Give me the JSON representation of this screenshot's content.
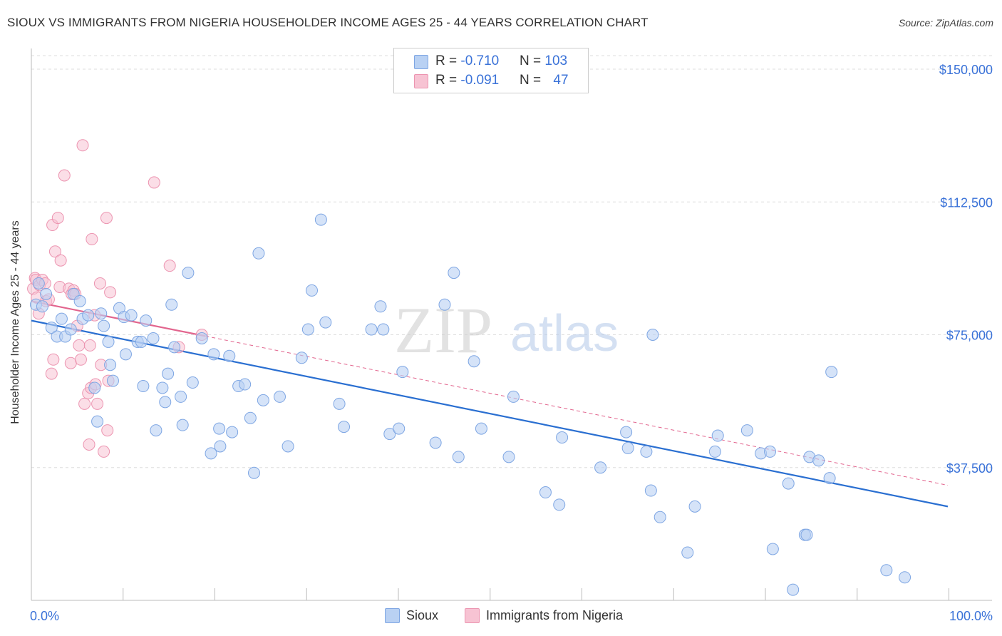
{
  "title": "SIOUX VS IMMIGRANTS FROM NIGERIA HOUSEHOLDER INCOME AGES 25 - 44 YEARS CORRELATION CHART",
  "source": "Source: ZipAtlas.com",
  "legend_top": {
    "rows": [
      {
        "r_label": "R = ",
        "r_value": "-0.710",
        "n_label": "N = ",
        "n_value": "103"
      },
      {
        "r_label": "R = ",
        "r_value": "-0.091",
        "n_label": "N = ",
        "n_value": "47"
      }
    ]
  },
  "watermark": {
    "part1": "ZIP",
    "part2": "atlas"
  },
  "colors": {
    "sioux_fill": "#b9d1f3",
    "sioux_stroke": "#7ea6e3",
    "sioux_line": "#2a6fd1",
    "nigeria_fill": "#f7c3d3",
    "nigeria_stroke": "#ec94b0",
    "nigeria_line": "#e2658e",
    "axis_label": "#3a72d8",
    "grid": "#dddddd"
  },
  "chart_data": {
    "type": "scatter",
    "title": "SIOUX VS IMMIGRANTS FROM NIGERIA HOUSEHOLDER INCOME AGES 25 - 44 YEARS CORRELATION CHART",
    "xlabel": "",
    "ylabel": "Householder Income Ages 25 - 44 years",
    "xlim": [
      0,
      100
    ],
    "ylim": [
      0,
      155000
    ],
    "x_tick_labels": [
      "0.0%",
      "100.0%"
    ],
    "y_ticks": [
      37500,
      75000,
      112500,
      150000
    ],
    "y_tick_labels": [
      "$37,500",
      "$75,000",
      "$112,500",
      "$150,000"
    ],
    "grid": true,
    "legend_position": "bottom-center",
    "series": [
      {
        "name": "Sioux",
        "r": -0.71,
        "n": 103,
        "trend": {
          "x": [
            0,
            100
          ],
          "y": [
            79000,
            26500
          ]
        },
        "points": [
          [
            0.5,
            83500
          ],
          [
            0.8,
            89500
          ],
          [
            1.2,
            83000
          ],
          [
            1.6,
            86500
          ],
          [
            2.2,
            77000
          ],
          [
            2.8,
            74500
          ],
          [
            3.3,
            79500
          ],
          [
            3.7,
            74500
          ],
          [
            4.3,
            76500
          ],
          [
            4.6,
            86500
          ],
          [
            5.3,
            84500
          ],
          [
            5.6,
            79500
          ],
          [
            6.2,
            80500
          ],
          [
            6.9,
            60000
          ],
          [
            7.2,
            50500
          ],
          [
            7.6,
            81000
          ],
          [
            7.9,
            77500
          ],
          [
            8.4,
            73000
          ],
          [
            8.6,
            66500
          ],
          [
            8.9,
            62000
          ],
          [
            9.6,
            82500
          ],
          [
            10.1,
            80000
          ],
          [
            10.3,
            69500
          ],
          [
            10.9,
            80500
          ],
          [
            11.6,
            73000
          ],
          [
            12.0,
            73000
          ],
          [
            12.2,
            60500
          ],
          [
            12.5,
            79000
          ],
          [
            13.3,
            74000
          ],
          [
            13.6,
            48000
          ],
          [
            14.3,
            60000
          ],
          [
            14.6,
            56000
          ],
          [
            14.9,
            64000
          ],
          [
            15.3,
            83500
          ],
          [
            15.6,
            71500
          ],
          [
            16.3,
            57500
          ],
          [
            16.5,
            49500
          ],
          [
            17.1,
            92500
          ],
          [
            17.6,
            61500
          ],
          [
            18.6,
            74000
          ],
          [
            19.6,
            41500
          ],
          [
            19.9,
            69500
          ],
          [
            20.5,
            48500
          ],
          [
            20.6,
            43500
          ],
          [
            21.6,
            69000
          ],
          [
            21.9,
            47500
          ],
          [
            22.6,
            60500
          ],
          [
            23.3,
            61000
          ],
          [
            23.9,
            51500
          ],
          [
            24.3,
            36000
          ],
          [
            24.8,
            98000
          ],
          [
            25.3,
            56500
          ],
          [
            27.1,
            57500
          ],
          [
            28.0,
            43500
          ],
          [
            29.5,
            68500
          ],
          [
            30.2,
            76500
          ],
          [
            30.6,
            87500
          ],
          [
            31.6,
            107500
          ],
          [
            32.1,
            78500
          ],
          [
            33.6,
            55500
          ],
          [
            34.1,
            49000
          ],
          [
            37.1,
            76500
          ],
          [
            38.1,
            83000
          ],
          [
            38.4,
            76500
          ],
          [
            39.1,
            47000
          ],
          [
            40.1,
            48500
          ],
          [
            40.5,
            64500
          ],
          [
            44.1,
            44500
          ],
          [
            45.1,
            83500
          ],
          [
            46.1,
            92500
          ],
          [
            46.6,
            40500
          ],
          [
            48.3,
            67500
          ],
          [
            49.1,
            48500
          ],
          [
            52.1,
            40500
          ],
          [
            52.6,
            57500
          ],
          [
            56.1,
            30500
          ],
          [
            57.6,
            27000
          ],
          [
            57.9,
            46000
          ],
          [
            62.1,
            37500
          ],
          [
            64.9,
            47500
          ],
          [
            65.1,
            43000
          ],
          [
            67.1,
            42000
          ],
          [
            67.6,
            31000
          ],
          [
            67.8,
            75000
          ],
          [
            68.6,
            23500
          ],
          [
            71.6,
            13500
          ],
          [
            72.4,
            26500
          ],
          [
            74.6,
            42000
          ],
          [
            74.9,
            46500
          ],
          [
            78.1,
            48000
          ],
          [
            79.6,
            41500
          ],
          [
            80.6,
            42000
          ],
          [
            80.9,
            14500
          ],
          [
            82.6,
            33000
          ],
          [
            83.1,
            3000
          ],
          [
            84.4,
            18500
          ],
          [
            84.6,
            18500
          ],
          [
            84.9,
            40500
          ],
          [
            85.9,
            39500
          ],
          [
            87.1,
            34500
          ],
          [
            87.3,
            64500
          ],
          [
            93.3,
            8500
          ],
          [
            95.3,
            6500
          ]
        ]
      },
      {
        "name": "Immigrants from Nigeria",
        "r": -0.091,
        "n": 47,
        "trend": {
          "x": [
            0,
            100
          ],
          "y": [
            84500,
            32500
          ]
        },
        "trend_solid_until": 19.0,
        "points": [
          [
            0.2,
            88000
          ],
          [
            0.4,
            91000
          ],
          [
            0.5,
            90500
          ],
          [
            0.6,
            85500
          ],
          [
            0.8,
            81000
          ],
          [
            0.9,
            89000
          ],
          [
            1.2,
            90500
          ],
          [
            1.5,
            89500
          ],
          [
            1.6,
            84500
          ],
          [
            1.9,
            85000
          ],
          [
            2.2,
            64000
          ],
          [
            2.3,
            106000
          ],
          [
            2.4,
            68000
          ],
          [
            2.6,
            98500
          ],
          [
            2.9,
            108000
          ],
          [
            3.1,
            88500
          ],
          [
            3.2,
            96000
          ],
          [
            3.6,
            120000
          ],
          [
            4.1,
            88000
          ],
          [
            4.3,
            67000
          ],
          [
            4.4,
            86500
          ],
          [
            4.6,
            87500
          ],
          [
            4.8,
            86500
          ],
          [
            5.0,
            77500
          ],
          [
            5.2,
            72000
          ],
          [
            5.4,
            68000
          ],
          [
            5.6,
            128500
          ],
          [
            5.8,
            55500
          ],
          [
            6.2,
            58500
          ],
          [
            6.3,
            44000
          ],
          [
            6.4,
            72000
          ],
          [
            6.5,
            60000
          ],
          [
            6.6,
            102000
          ],
          [
            6.9,
            80500
          ],
          [
            7.0,
            61000
          ],
          [
            7.2,
            55500
          ],
          [
            7.5,
            89500
          ],
          [
            7.6,
            66500
          ],
          [
            7.9,
            42000
          ],
          [
            8.2,
            108000
          ],
          [
            8.3,
            48000
          ],
          [
            8.4,
            62000
          ],
          [
            8.6,
            87000
          ],
          [
            13.4,
            118000
          ],
          [
            15.1,
            94500
          ],
          [
            16.1,
            71500
          ],
          [
            18.6,
            75000
          ]
        ]
      }
    ]
  },
  "legend_bottom": {
    "items": [
      "Sioux",
      "Immigrants from Nigeria"
    ]
  }
}
